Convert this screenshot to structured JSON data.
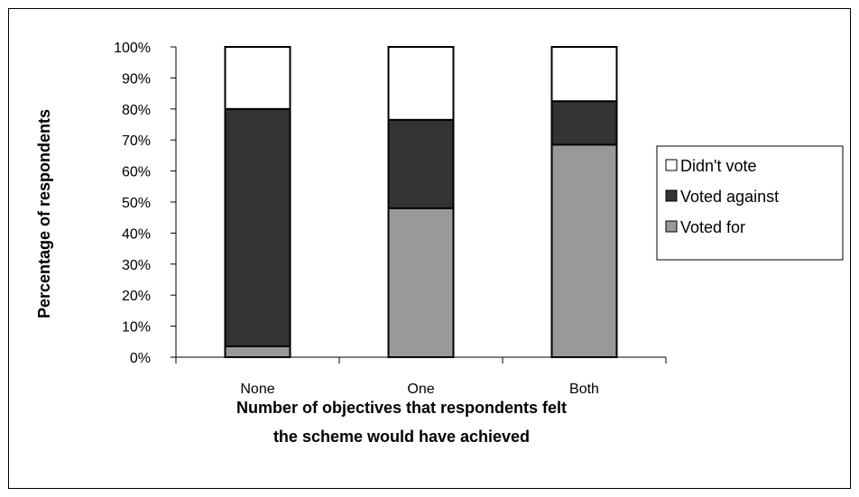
{
  "chart_data": {
    "type": "bar",
    "stacked": true,
    "categories": [
      "None",
      "One",
      "Both"
    ],
    "series": [
      {
        "name": "Voted for",
        "values": [
          3.5,
          48,
          68.5
        ],
        "color": "#999999"
      },
      {
        "name": "Voted against",
        "values": [
          76.5,
          28.5,
          14
        ],
        "color": "#333333"
      },
      {
        "name": "Didn't vote",
        "values": [
          20,
          23.5,
          17.5
        ],
        "color": "#ffffff"
      }
    ],
    "y_ticks": [
      "0%",
      "10%",
      "20%",
      "30%",
      "40%",
      "50%",
      "60%",
      "70%",
      "80%",
      "90%",
      "100%"
    ],
    "ylim": [
      0,
      100
    ],
    "ylabel": "Percentage of respondents",
    "xlabel_lines": [
      "Number of objectives that respondents felt",
      "the scheme would have achieved"
    ],
    "legend": {
      "position": "right",
      "entries": [
        "Didn't vote",
        "Voted against",
        "Voted for"
      ]
    },
    "grid": false
  }
}
